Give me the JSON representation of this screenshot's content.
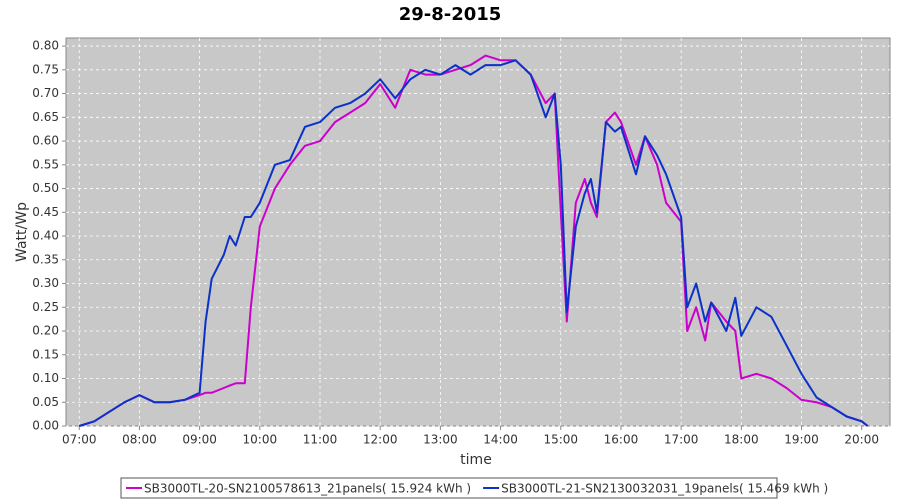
{
  "chart_data": {
    "type": "line",
    "title": "29-8-2015",
    "x_label": "time",
    "y_label": "Watt/Wp",
    "x": [
      7.0,
      7.25,
      7.5,
      7.75,
      8.0,
      8.25,
      8.5,
      8.75,
      9.0,
      9.1,
      9.2,
      9.4,
      9.5,
      9.6,
      9.75,
      9.85,
      10.0,
      10.25,
      10.5,
      10.75,
      11.0,
      11.25,
      11.5,
      11.75,
      12.0,
      12.25,
      12.5,
      12.75,
      13.0,
      13.25,
      13.5,
      13.75,
      14.0,
      14.25,
      14.5,
      14.75,
      14.9,
      15.0,
      15.1,
      15.25,
      15.4,
      15.5,
      15.6,
      15.75,
      15.9,
      16.0,
      16.25,
      16.4,
      16.6,
      16.75,
      17.0,
      17.1,
      17.25,
      17.4,
      17.5,
      17.75,
      17.9,
      18.0,
      18.25,
      18.5,
      18.75,
      19.0,
      19.25,
      19.5,
      19.75,
      20.0,
      20.1
    ],
    "series": [
      {
        "name": "SB3000TL-20-SN2100578613_21panels( 15.924 kWh )",
        "color": "#cc00cc",
        "values": [
          0,
          0.01,
          0.03,
          0.05,
          0.065,
          0.05,
          0.05,
          0.055,
          0.065,
          0.07,
          0.07,
          0.08,
          0.085,
          0.09,
          0.09,
          0.25,
          0.42,
          0.5,
          0.55,
          0.59,
          0.6,
          0.64,
          0.66,
          0.68,
          0.72,
          0.67,
          0.75,
          0.74,
          0.74,
          0.75,
          0.76,
          0.78,
          0.77,
          0.77,
          0.74,
          0.68,
          0.7,
          0.45,
          0.22,
          0.47,
          0.52,
          0.47,
          0.44,
          0.64,
          0.66,
          0.64,
          0.55,
          0.61,
          0.55,
          0.47,
          0.43,
          0.2,
          0.25,
          0.18,
          0.26,
          0.22,
          0.2,
          0.1,
          0.11,
          0.1,
          0.08,
          0.055,
          0.05,
          0.04,
          0.02,
          0.01,
          0
        ]
      },
      {
        "name": "SB3000TL-21-SN2130032031_19panels( 15.469 kWh )",
        "color": "#0a32c8",
        "values": [
          0,
          0.01,
          0.03,
          0.05,
          0.065,
          0.05,
          0.05,
          0.055,
          0.07,
          0.22,
          0.31,
          0.36,
          0.4,
          0.38,
          0.44,
          0.44,
          0.47,
          0.55,
          0.56,
          0.63,
          0.64,
          0.67,
          0.68,
          0.7,
          0.73,
          0.69,
          0.73,
          0.75,
          0.74,
          0.76,
          0.74,
          0.76,
          0.76,
          0.77,
          0.74,
          0.65,
          0.7,
          0.55,
          0.24,
          0.42,
          0.49,
          0.52,
          0.45,
          0.64,
          0.62,
          0.63,
          0.53,
          0.61,
          0.57,
          0.53,
          0.44,
          0.25,
          0.3,
          0.22,
          0.26,
          0.2,
          0.27,
          0.19,
          0.25,
          0.23,
          0.17,
          0.11,
          0.06,
          0.04,
          0.02,
          0.01,
          0
        ]
      }
    ],
    "xlim": [
      6.78,
      20.47
    ],
    "ylim": [
      0,
      0.817
    ],
    "xticks": [
      {
        "value": 7,
        "label": "07:00"
      },
      {
        "value": 8,
        "label": "08:00"
      },
      {
        "value": 9,
        "label": "09:00"
      },
      {
        "value": 10,
        "label": "10:00"
      },
      {
        "value": 11,
        "label": "11:00"
      },
      {
        "value": 12,
        "label": "12:00"
      },
      {
        "value": 13,
        "label": "13:00"
      },
      {
        "value": 14,
        "label": "14:00"
      },
      {
        "value": 15,
        "label": "15:00"
      },
      {
        "value": 16,
        "label": "16:00"
      },
      {
        "value": 17,
        "label": "17:00"
      },
      {
        "value": 18,
        "label": "18:00"
      },
      {
        "value": 19,
        "label": "19:00"
      },
      {
        "value": 20,
        "label": "20:00"
      }
    ],
    "yticks": [
      {
        "value": 0,
        "label": "0.00"
      },
      {
        "value": 0.05,
        "label": "0.05"
      },
      {
        "value": 0.1,
        "label": "0.10"
      },
      {
        "value": 0.15,
        "label": "0.15"
      },
      {
        "value": 0.2,
        "label": "0.20"
      },
      {
        "value": 0.25,
        "label": "0.25"
      },
      {
        "value": 0.3,
        "label": "0.30"
      },
      {
        "value": 0.35,
        "label": "0.35"
      },
      {
        "value": 0.4,
        "label": "0.40"
      },
      {
        "value": 0.45,
        "label": "0.45"
      },
      {
        "value": 0.5,
        "label": "0.50"
      },
      {
        "value": 0.55,
        "label": "0.55"
      },
      {
        "value": 0.6,
        "label": "0.60"
      },
      {
        "value": 0.65,
        "label": "0.65"
      },
      {
        "value": 0.7,
        "label": "0.70"
      },
      {
        "value": 0.75,
        "label": "0.75"
      },
      {
        "value": 0.8,
        "label": "0.80"
      }
    ],
    "grid": true
  }
}
